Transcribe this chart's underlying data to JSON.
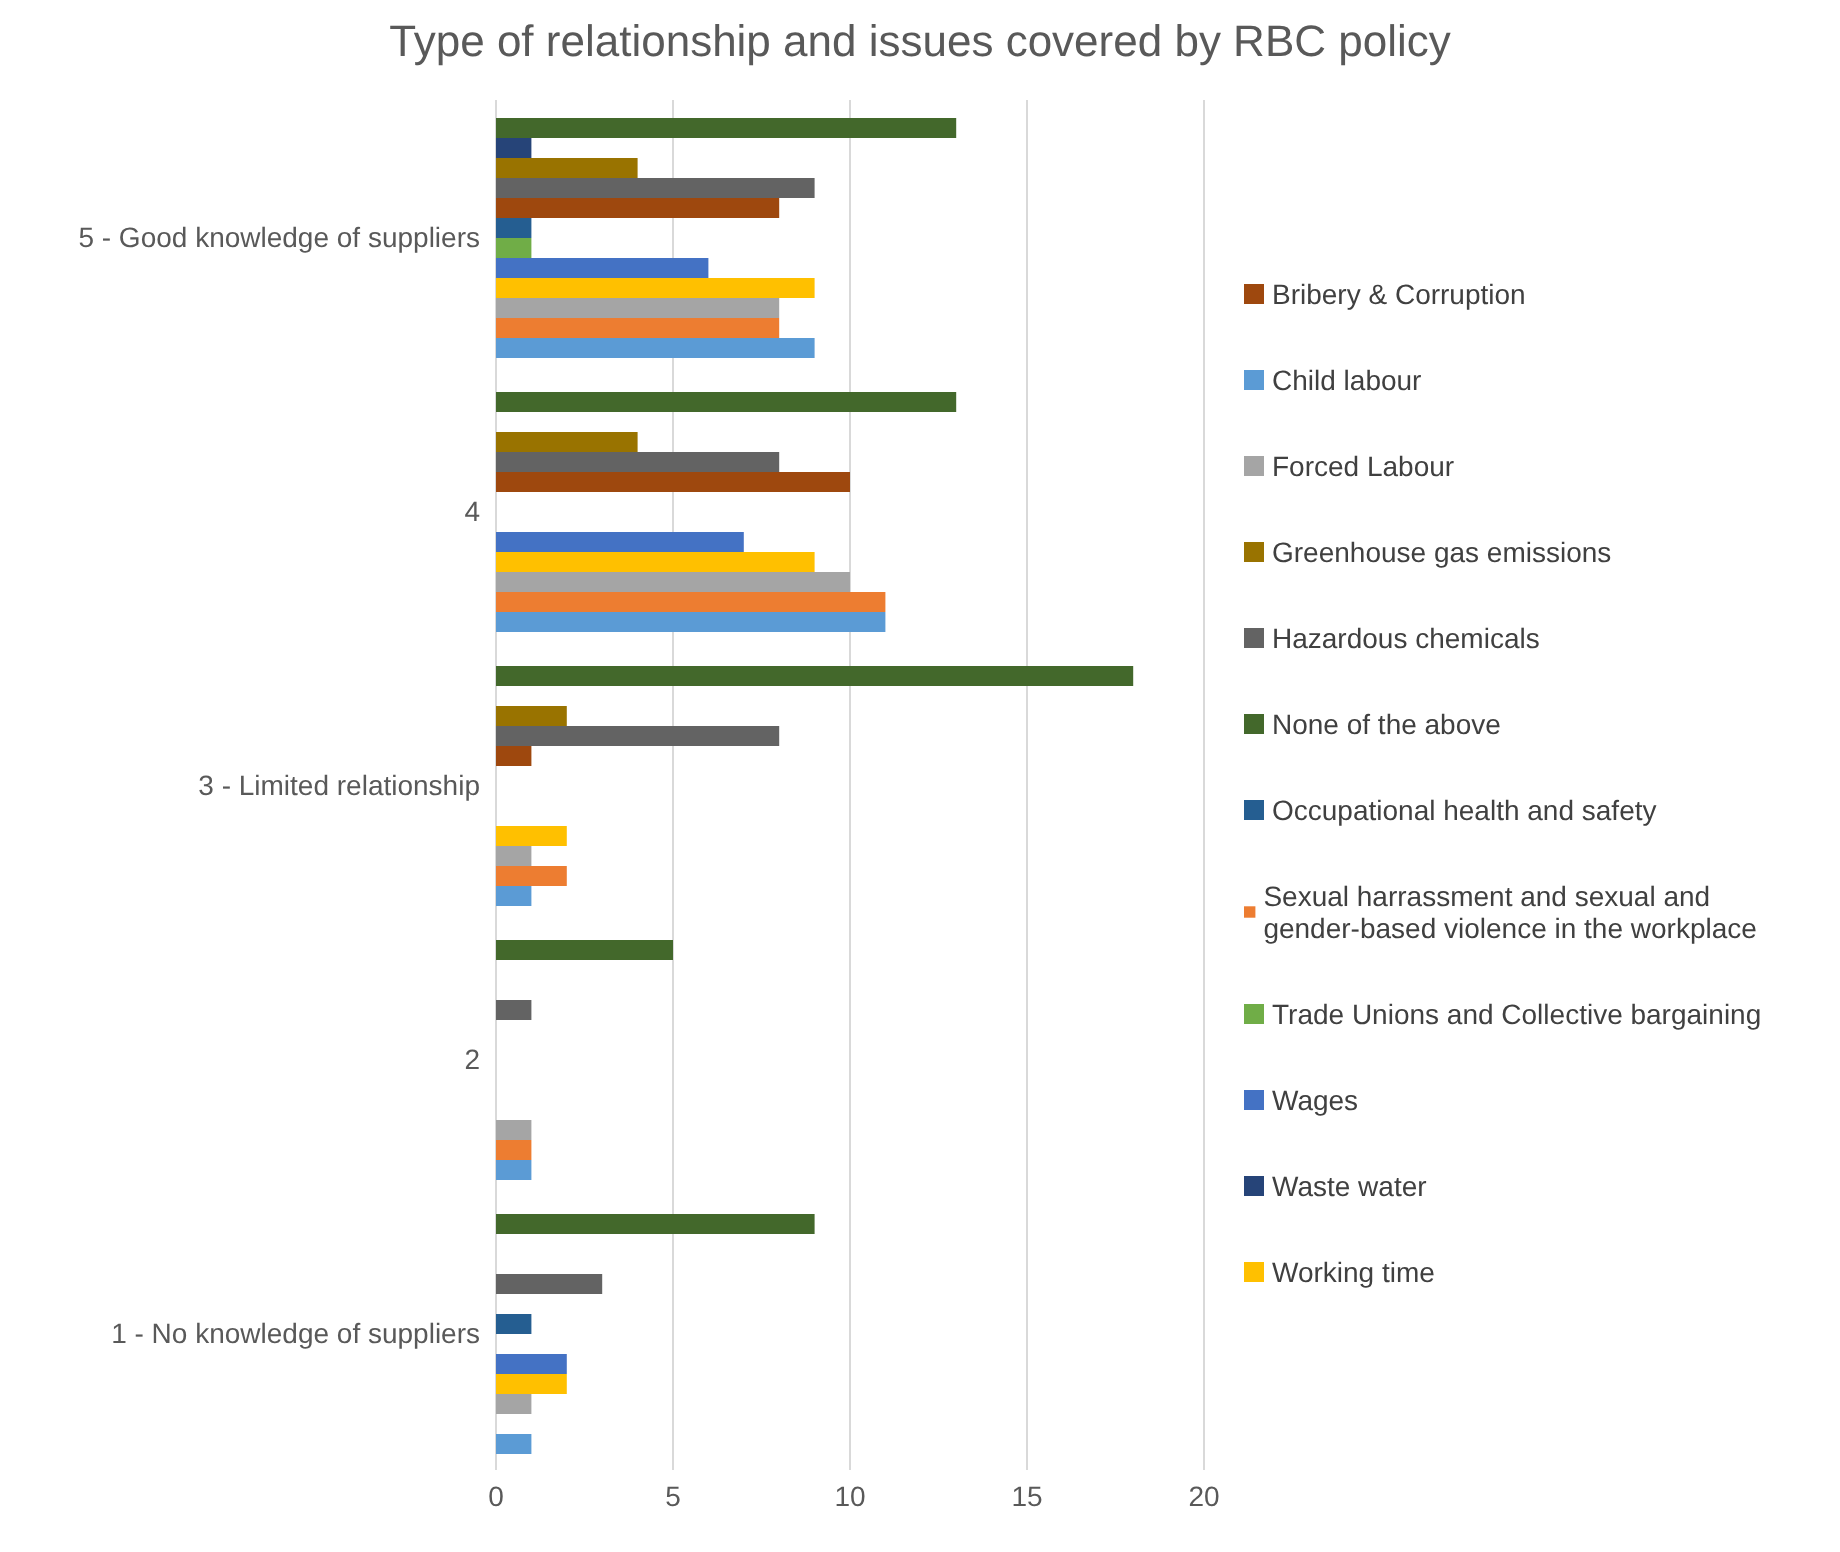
{
  "chart_data": {
    "type": "bar",
    "orientation": "horizontal",
    "title": "Type of relationship and issues covered by RBC policy",
    "categories": [
      "5 - Good knowledge of suppliers",
      "4",
      "3 - Limited relationship",
      "2",
      "1 - No knowledge of suppliers"
    ],
    "series": [
      {
        "name": "None of the above",
        "color": "#43682b",
        "values": [
          13,
          13,
          18,
          5,
          9
        ]
      },
      {
        "name": "Waste water",
        "color": "#264478",
        "values": [
          1,
          0,
          0,
          0,
          0
        ]
      },
      {
        "name": "Greenhouse gas emissions",
        "color": "#997300",
        "values": [
          4,
          4,
          2,
          0,
          0
        ]
      },
      {
        "name": "Hazardous chemicals",
        "color": "#636363",
        "values": [
          9,
          8,
          8,
          1,
          3
        ]
      },
      {
        "name": "Bribery & Corruption",
        "color": "#9e480e",
        "values": [
          8,
          10,
          1,
          0,
          0
        ]
      },
      {
        "name": "Occupational health and safety",
        "color": "#255e91",
        "values": [
          1,
          0,
          0,
          0,
          1
        ]
      },
      {
        "name": "Trade Unions and Collective bargaining",
        "color": "#70ad47",
        "values": [
          1,
          0,
          0,
          0,
          0
        ]
      },
      {
        "name": "Wages",
        "color": "#4472c4",
        "values": [
          6,
          7,
          0,
          0,
          2
        ]
      },
      {
        "name": "Working time",
        "color": "#ffc000",
        "values": [
          9,
          9,
          2,
          0,
          2
        ]
      },
      {
        "name": "Forced Labour",
        "color": "#a5a5a5",
        "values": [
          8,
          10,
          1,
          1,
          1
        ]
      },
      {
        "name": "Sexual harrassment and sexual and gender-based violence in the workplace",
        "color": "#ed7d31",
        "values": [
          8,
          11,
          2,
          1,
          0
        ]
      },
      {
        "name": "Child labour",
        "color": "#5b9bd5",
        "values": [
          9,
          11,
          1,
          1,
          1
        ]
      }
    ],
    "xlim": [
      0,
      20
    ],
    "xticks": [
      0,
      5,
      10,
      15,
      20
    ],
    "grid": "x",
    "legend": "right"
  }
}
